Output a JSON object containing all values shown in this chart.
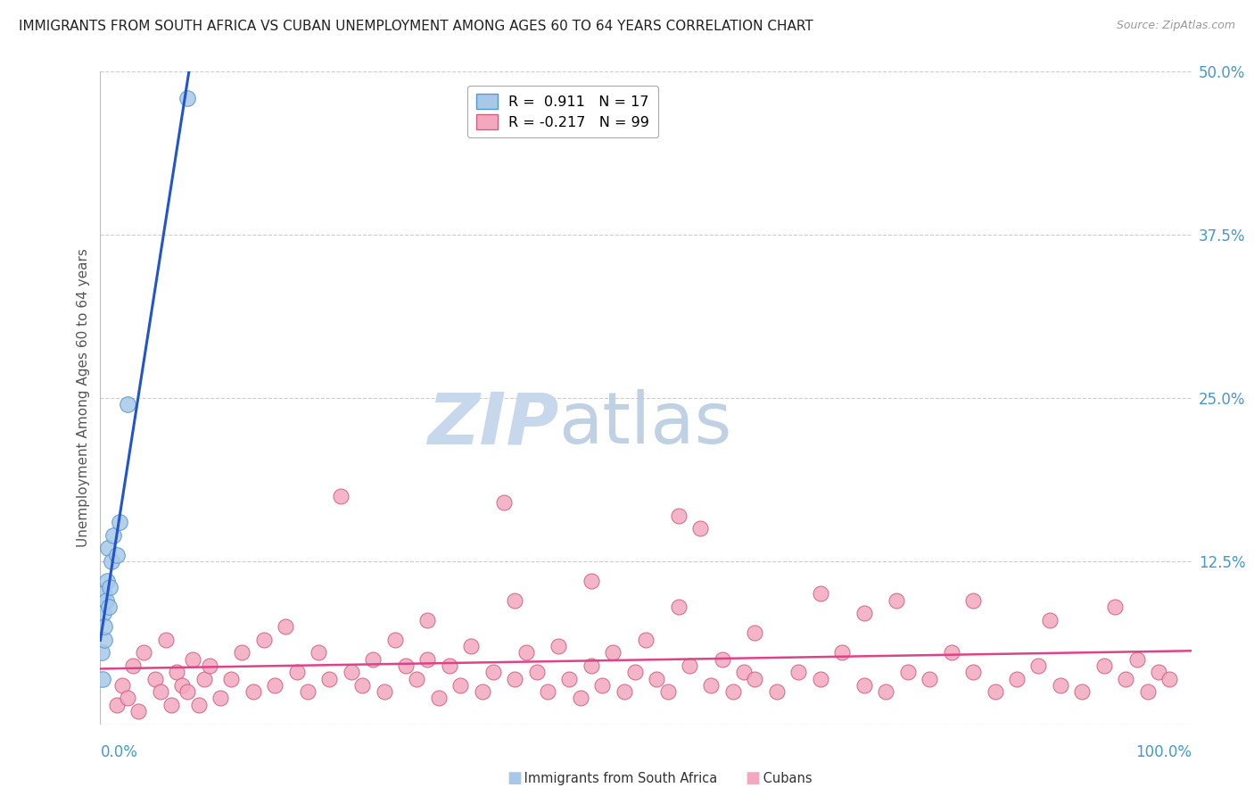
{
  "title": "IMMIGRANTS FROM SOUTH AFRICA VS CUBAN UNEMPLOYMENT AMONG AGES 60 TO 64 YEARS CORRELATION CHART",
  "source": "Source: ZipAtlas.com",
  "ylabel": "Unemployment Among Ages 60 to 64 years",
  "xlim": [
    0,
    100
  ],
  "ylim": [
    0,
    50
  ],
  "ytick_positions": [
    0,
    12.5,
    25,
    37.5,
    50
  ],
  "ytick_labels": [
    "",
    "12.5%",
    "25.0%",
    "37.5%",
    "50.0%"
  ],
  "south_africa_color": "#a8c8e8",
  "south_africa_edge_color": "#5599cc",
  "cubans_color": "#f4a8c0",
  "cubans_edge_color": "#d06080",
  "blue_line_color": "#2255cc",
  "pink_line_color": "#dd4488",
  "watermark_zip_color": "#c8d8ec",
  "watermark_atlas_color": "#b8cce0",
  "background_color": "#ffffff",
  "grid_color": "#cccccc",
  "axis_label_color": "#4499cc",
  "bottom_label_color": "#333333",
  "legend_r1": "R =  0.911   N = 17",
  "legend_r2": "R = -0.217   N = 99",
  "sa_x": [
    0.15,
    0.2,
    0.25,
    0.3,
    0.35,
    0.4,
    0.5,
    0.6,
    0.7,
    0.8,
    0.9,
    1.0,
    1.2,
    1.5,
    1.8,
    2.5,
    8.0
  ],
  "sa_y": [
    5.5,
    3.5,
    8.5,
    10.0,
    6.5,
    7.5,
    9.5,
    11.0,
    13.5,
    9.0,
    10.5,
    12.5,
    14.5,
    13.0,
    15.5,
    24.5,
    48.0
  ],
  "cu_x": [
    1.5,
    2.0,
    2.5,
    3.0,
    3.5,
    4.0,
    5.0,
    5.5,
    6.0,
    6.5,
    7.0,
    7.5,
    8.0,
    8.5,
    9.0,
    9.5,
    10.0,
    11.0,
    12.0,
    13.0,
    14.0,
    15.0,
    16.0,
    17.0,
    18.0,
    19.0,
    20.0,
    21.0,
    22.0,
    23.0,
    24.0,
    25.0,
    26.0,
    27.0,
    28.0,
    29.0,
    30.0,
    31.0,
    32.0,
    33.0,
    34.0,
    35.0,
    36.0,
    37.0,
    38.0,
    39.0,
    40.0,
    41.0,
    42.0,
    43.0,
    44.0,
    45.0,
    46.0,
    47.0,
    48.0,
    49.0,
    50.0,
    51.0,
    52.0,
    53.0,
    54.0,
    55.0,
    56.0,
    57.0,
    58.0,
    59.0,
    60.0,
    62.0,
    64.0,
    66.0,
    68.0,
    70.0,
    72.0,
    74.0,
    76.0,
    78.0,
    80.0,
    82.0,
    84.0,
    86.0,
    88.0,
    90.0,
    92.0,
    94.0,
    95.0,
    96.0,
    97.0,
    98.0,
    30.0,
    38.0,
    45.0,
    53.0,
    60.0,
    70.0,
    80.0,
    87.0,
    93.0,
    66.0,
    73.0
  ],
  "cu_y": [
    1.5,
    3.0,
    2.0,
    4.5,
    1.0,
    5.5,
    3.5,
    2.5,
    6.5,
    1.5,
    4.0,
    3.0,
    2.5,
    5.0,
    1.5,
    3.5,
    4.5,
    2.0,
    3.5,
    5.5,
    2.5,
    6.5,
    3.0,
    7.5,
    4.0,
    2.5,
    5.5,
    3.5,
    17.5,
    4.0,
    3.0,
    5.0,
    2.5,
    6.5,
    4.5,
    3.5,
    5.0,
    2.0,
    4.5,
    3.0,
    6.0,
    2.5,
    4.0,
    17.0,
    3.5,
    5.5,
    4.0,
    2.5,
    6.0,
    3.5,
    2.0,
    4.5,
    3.0,
    5.5,
    2.5,
    4.0,
    6.5,
    3.5,
    2.5,
    16.0,
    4.5,
    15.0,
    3.0,
    5.0,
    2.5,
    4.0,
    3.5,
    2.5,
    4.0,
    3.5,
    5.5,
    3.0,
    2.5,
    4.0,
    3.5,
    5.5,
    4.0,
    2.5,
    3.5,
    4.5,
    3.0,
    2.5,
    4.5,
    3.5,
    5.0,
    2.5,
    4.0,
    3.5,
    8.0,
    9.5,
    11.0,
    9.0,
    7.0,
    8.5,
    9.5,
    8.0,
    9.0,
    10.0,
    9.5
  ]
}
